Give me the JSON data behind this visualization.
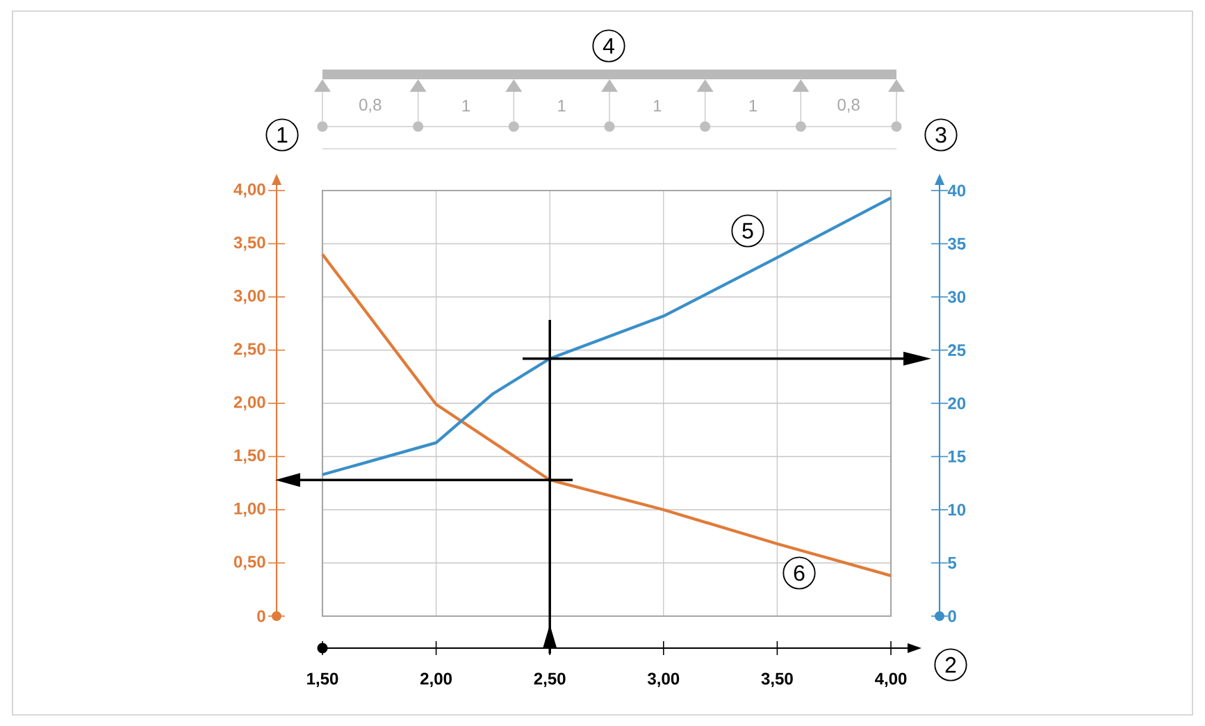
{
  "chart_data": {
    "type": "line",
    "x": [
      1.5,
      2.0,
      2.5,
      3.0,
      3.5,
      4.0
    ],
    "series": [
      {
        "color": "#e07b39",
        "values": [
          3.4,
          1.99,
          1.28,
          1.0,
          0.68,
          0.38
        ]
      },
      {
        "color": "#3a8fc8",
        "axis": "y2",
        "x": [
          1.5,
          2.0,
          2.25,
          2.5,
          3.0,
          3.5,
          4.0
        ],
        "values": [
          13.3,
          16.3,
          20.9,
          24.2,
          28.2,
          33.7,
          39.3
        ]
      }
    ],
    "xlim": [
      1.5,
      4.0
    ],
    "ylim": [
      0,
      4.0
    ],
    "y2lim": [
      0,
      40
    ],
    "xticks": [
      {
        "value": 1.5,
        "label": "1,50"
      },
      {
        "value": 2.0,
        "label": "2,00"
      },
      {
        "value": 2.5,
        "label": "2,50"
      },
      {
        "value": 3.0,
        "label": "3,00"
      },
      {
        "value": 3.5,
        "label": "3,50"
      },
      {
        "value": 4.0,
        "label": "4,00"
      }
    ],
    "yticks": [
      0,
      {
        "value": 0.5,
        "label": "0,50"
      },
      {
        "value": 1.0,
        "label": "1,00"
      },
      {
        "value": 1.5,
        "label": "1,50"
      },
      {
        "value": 2.0,
        "label": "2,00"
      },
      {
        "value": 2.5,
        "label": "2,50"
      },
      {
        "value": 3.0,
        "label": "3,00"
      },
      {
        "value": 3.5,
        "label": "3,50"
      },
      {
        "value": 4.0,
        "label": "4,00"
      }
    ],
    "y2ticks": [
      0,
      5,
      10,
      15,
      20,
      25,
      30,
      35,
      40
    ],
    "grid": true,
    "line_style": "solid",
    "marker": "none",
    "ref_lines": [
      {
        "axis": "x",
        "value": 2.5,
        "color": "#000000"
      },
      {
        "axis": "y",
        "value": 1.28,
        "color": "#000000"
      },
      {
        "axis": "y2",
        "value": 24.2,
        "color": "#000000"
      }
    ],
    "annotations": [
      "0,8",
      "1",
      "1",
      "1",
      "1",
      "0,8",
      "1",
      "2",
      "3",
      "4",
      "5",
      "6"
    ]
  }
}
